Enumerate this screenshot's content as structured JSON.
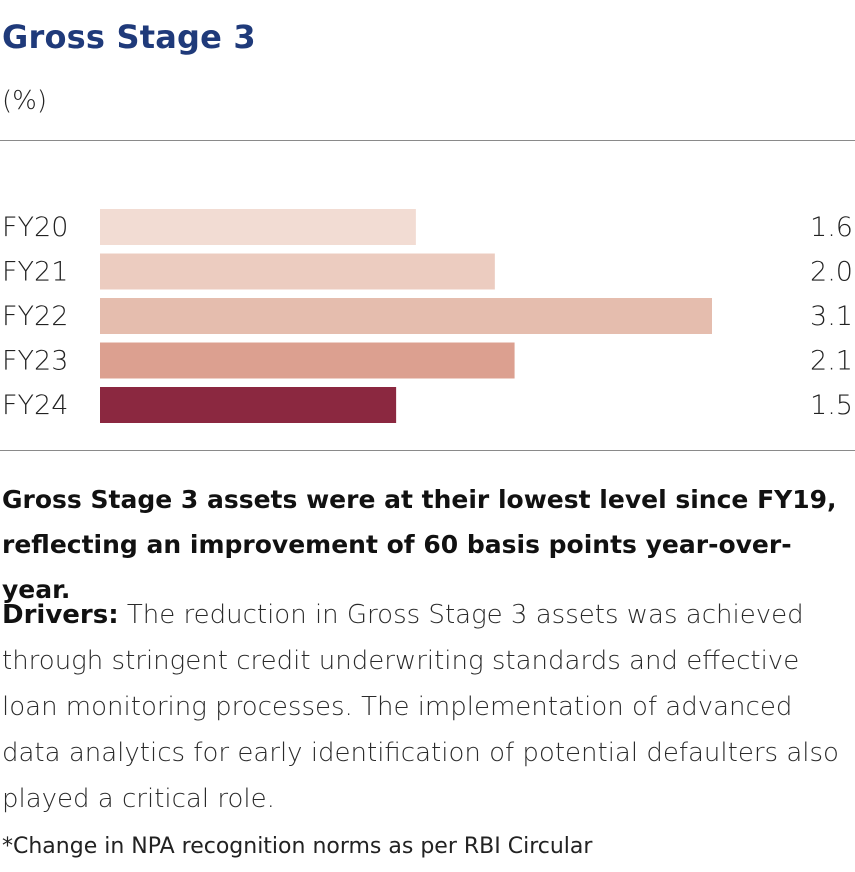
{
  "header": {
    "title": "Gross Stage 3",
    "unit": "(%)"
  },
  "chart_data": {
    "type": "bar",
    "orientation": "horizontal",
    "categories": [
      "FY20",
      "FY21",
      "FY22",
      "FY23",
      "FY24"
    ],
    "values": [
      1.6,
      2.0,
      3.1,
      2.1,
      1.5
    ],
    "value_labels": [
      "1.6",
      "2.0",
      "3.1",
      "2.1",
      "1.5"
    ],
    "bar_colors": [
      "#f2dcd3",
      "#ecccc0",
      "#e5bdae",
      "#dca090",
      "#8b2840"
    ],
    "title": "Gross Stage 3",
    "ylabel": "(%)"
  },
  "text": {
    "lead": "Gross Stage 3 assets were at their lowest level since FY19, reflecting an improvement of 60 basis points year-over-year.",
    "drivers_label": "Drivers:",
    "drivers_body": " The reduction in Gross Stage 3 assets was achieved through stringent credit underwriting standards and effective loan monitoring processes. The implementation of advanced data analytics for early identification of potential defaulters also played a critical role.",
    "footnote": "*Change in NPA recognition norms as per RBI Circular"
  }
}
